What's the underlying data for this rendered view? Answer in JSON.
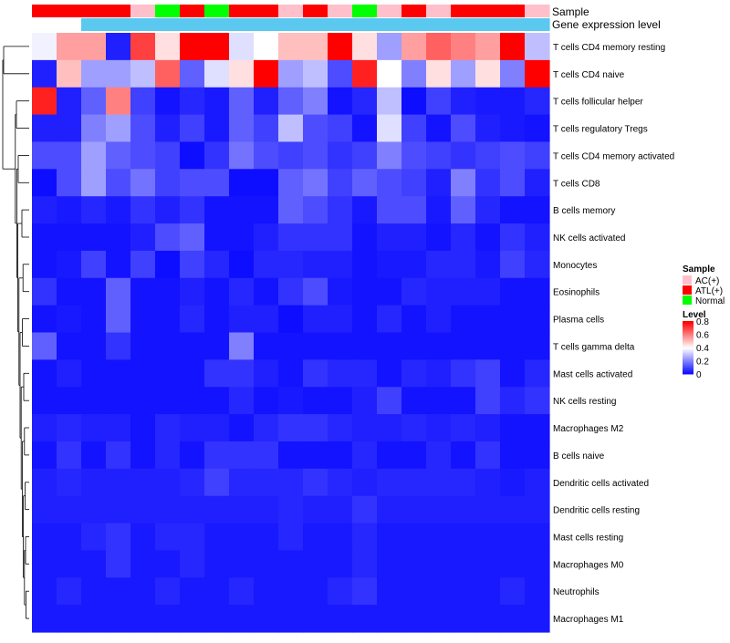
{
  "chart_data": {
    "type": "heatmap",
    "title": "",
    "rows": [
      "T cells CD4 memory resting",
      "T cells CD4 naive",
      "T cells follicular helper",
      "T cells regulatory  Tregs",
      "T cells CD4 memory activated",
      "T cells CD8",
      "B cells memory",
      "NK cells activated",
      "Monocytes",
      "Eosinophils",
      "Plasma cells",
      "T cells gamma delta",
      "Mast cells activated",
      "NK cells resting",
      "Macrophages M2",
      "B cells naive",
      "Dendritic cells activated",
      "Dendritic cells resting",
      "Mast cells resting",
      "Macrophages M0",
      "Neutrophils",
      "Macrophages M1"
    ],
    "column_annotations": [
      {
        "name": "Sample",
        "values": [
          "ATL(+)",
          "ATL(+)",
          "ATL(+)",
          "ATL(+)",
          "AC(+)",
          "Normal",
          "ATL(+)",
          "Normal",
          "ATL(+)",
          "ATL(+)",
          "AC(+)",
          "ATL(+)",
          "AC(+)",
          "Normal",
          "AC(+)",
          "ATL(+)",
          "AC(+)",
          "ATL(+)",
          "ATL(+)",
          "ATL(+)",
          "AC(+)"
        ]
      },
      {
        "name": "Gene expression level",
        "values": [
          "low",
          "low",
          "high",
          "high",
          "high",
          "high",
          "high",
          "high",
          "high",
          "high",
          "high",
          "high",
          "high",
          "high",
          "high",
          "high",
          "high",
          "high",
          "high",
          "high",
          "high"
        ]
      }
    ],
    "values": [
      [
        0.38,
        0.55,
        0.55,
        0.05,
        0.7,
        0.45,
        0.8,
        0.8,
        0.35,
        0.4,
        0.5,
        0.5,
        0.8,
        0.45,
        0.25,
        0.55,
        0.65,
        0.6,
        0.55,
        0.8,
        0.3
      ],
      [
        0.05,
        0.5,
        0.25,
        0.25,
        0.3,
        0.65,
        0.15,
        0.35,
        0.45,
        0.8,
        0.25,
        0.3,
        0.12,
        0.75,
        0.4,
        0.2,
        0.45,
        0.25,
        0.45,
        0.2,
        0.8
      ],
      [
        0.75,
        0.05,
        0.15,
        0.6,
        0.1,
        0.03,
        0.06,
        0.04,
        0.15,
        0.05,
        0.15,
        0.2,
        0.03,
        0.06,
        0.3,
        0.02,
        0.1,
        0.05,
        0.04,
        0.04,
        0.06
      ],
      [
        0.05,
        0.05,
        0.2,
        0.25,
        0.12,
        0.05,
        0.1,
        0.04,
        0.15,
        0.1,
        0.3,
        0.12,
        0.1,
        0.03,
        0.35,
        0.1,
        0.03,
        0.12,
        0.05,
        0.04,
        0.03
      ],
      [
        0.12,
        0.12,
        0.25,
        0.15,
        0.12,
        0.1,
        0.02,
        0.08,
        0.18,
        0.12,
        0.1,
        0.12,
        0.08,
        0.1,
        0.2,
        0.12,
        0.1,
        0.08,
        0.1,
        0.12,
        0.1
      ],
      [
        0.02,
        0.12,
        0.25,
        0.12,
        0.18,
        0.1,
        0.12,
        0.12,
        0.02,
        0.02,
        0.15,
        0.18,
        0.1,
        0.15,
        0.12,
        0.1,
        0.05,
        0.2,
        0.08,
        0.12,
        0.05
      ],
      [
        0.05,
        0.04,
        0.06,
        0.04,
        0.08,
        0.05,
        0.08,
        0.03,
        0.03,
        0.03,
        0.15,
        0.12,
        0.08,
        0.04,
        0.12,
        0.12,
        0.04,
        0.15,
        0.06,
        0.03,
        0.03
      ],
      [
        0.03,
        0.03,
        0.03,
        0.03,
        0.05,
        0.12,
        0.15,
        0.03,
        0.03,
        0.05,
        0.08,
        0.08,
        0.08,
        0.03,
        0.05,
        0.05,
        0.03,
        0.06,
        0.03,
        0.08,
        0.05
      ],
      [
        0.03,
        0.04,
        0.1,
        0.03,
        0.1,
        0.02,
        0.1,
        0.06,
        0.02,
        0.06,
        0.06,
        0.05,
        0.05,
        0.03,
        0.04,
        0.04,
        0.06,
        0.06,
        0.04,
        0.1,
        0.06
      ],
      [
        0.08,
        0.03,
        0.03,
        0.15,
        0.03,
        0.03,
        0.05,
        0.03,
        0.06,
        0.03,
        0.08,
        0.12,
        0.04,
        0.03,
        0.03,
        0.06,
        0.05,
        0.05,
        0.05,
        0.03,
        0.03
      ],
      [
        0.03,
        0.04,
        0.03,
        0.15,
        0.03,
        0.03,
        0.06,
        0.03,
        0.05,
        0.05,
        0.02,
        0.05,
        0.05,
        0.03,
        0.06,
        0.03,
        0.05,
        0.03,
        0.03,
        0.03,
        0.03
      ],
      [
        0.15,
        0.03,
        0.03,
        0.08,
        0.03,
        0.03,
        0.03,
        0.03,
        0.2,
        0.03,
        0.03,
        0.03,
        0.03,
        0.03,
        0.03,
        0.03,
        0.03,
        0.03,
        0.03,
        0.03,
        0.03
      ],
      [
        0.03,
        0.05,
        0.03,
        0.03,
        0.03,
        0.03,
        0.03,
        0.08,
        0.08,
        0.05,
        0.03,
        0.08,
        0.06,
        0.06,
        0.03,
        0.06,
        0.05,
        0.08,
        0.1,
        0.03,
        0.06
      ],
      [
        0.03,
        0.03,
        0.03,
        0.03,
        0.03,
        0.03,
        0.03,
        0.03,
        0.06,
        0.03,
        0.04,
        0.03,
        0.03,
        0.05,
        0.1,
        0.03,
        0.03,
        0.03,
        0.1,
        0.06,
        0.08
      ],
      [
        0.05,
        0.06,
        0.05,
        0.05,
        0.03,
        0.06,
        0.05,
        0.05,
        0.03,
        0.06,
        0.08,
        0.08,
        0.06,
        0.05,
        0.05,
        0.06,
        0.05,
        0.06,
        0.05,
        0.03,
        0.03
      ],
      [
        0.03,
        0.08,
        0.03,
        0.08,
        0.03,
        0.06,
        0.03,
        0.08,
        0.08,
        0.08,
        0.03,
        0.03,
        0.03,
        0.06,
        0.03,
        0.03,
        0.06,
        0.03,
        0.08,
        0.03,
        0.03
      ],
      [
        0.05,
        0.06,
        0.05,
        0.05,
        0.05,
        0.05,
        0.06,
        0.1,
        0.06,
        0.06,
        0.06,
        0.08,
        0.06,
        0.05,
        0.06,
        0.06,
        0.06,
        0.06,
        0.05,
        0.04,
        0.05
      ],
      [
        0.05,
        0.05,
        0.05,
        0.05,
        0.05,
        0.05,
        0.05,
        0.05,
        0.05,
        0.05,
        0.06,
        0.05,
        0.05,
        0.08,
        0.05,
        0.05,
        0.05,
        0.05,
        0.05,
        0.05,
        0.05
      ],
      [
        0.04,
        0.04,
        0.06,
        0.08,
        0.04,
        0.06,
        0.06,
        0.04,
        0.04,
        0.04,
        0.06,
        0.04,
        0.04,
        0.06,
        0.04,
        0.04,
        0.04,
        0.04,
        0.04,
        0.04,
        0.04
      ],
      [
        0.04,
        0.04,
        0.04,
        0.08,
        0.04,
        0.04,
        0.06,
        0.04,
        0.04,
        0.04,
        0.04,
        0.04,
        0.04,
        0.06,
        0.04,
        0.04,
        0.04,
        0.04,
        0.04,
        0.04,
        0.04
      ],
      [
        0.04,
        0.06,
        0.04,
        0.04,
        0.04,
        0.06,
        0.04,
        0.04,
        0.06,
        0.04,
        0.04,
        0.04,
        0.06,
        0.08,
        0.04,
        0.04,
        0.04,
        0.04,
        0.04,
        0.06,
        0.04
      ],
      [
        0.04,
        0.04,
        0.04,
        0.04,
        0.04,
        0.04,
        0.04,
        0.04,
        0.04,
        0.04,
        0.04,
        0.04,
        0.04,
        0.04,
        0.04,
        0.04,
        0.04,
        0.04,
        0.04,
        0.04,
        0.04
      ]
    ],
    "color_scale": {
      "colors": [
        "#0000ff",
        "#ffffff",
        "#ff0000"
      ],
      "domain": [
        0,
        0.4,
        0.8
      ]
    },
    "annotation_colors": {
      "Sample": {
        "AC(+)": "#ffc0cb",
        "ATL(+)": "#ff0000",
        "Normal": "#00ff00"
      },
      "Gene expression level": {
        "low": "#ffffff",
        "high": "#5bc8f0"
      }
    },
    "row_dendrogram_merges": [
      [
        0,
        1,
        0.65
      ],
      [
        2,
        3,
        0.3
      ],
      [
        4,
        5,
        0.25
      ],
      [
        6,
        7,
        0.15
      ],
      [
        8,
        9,
        0.12
      ],
      [
        10,
        11,
        0.14
      ],
      [
        12,
        13,
        0.1
      ],
      [
        14,
        15,
        0.08
      ],
      [
        16,
        17,
        0.06
      ],
      [
        18,
        19,
        0.05
      ],
      [
        20,
        21,
        0.04
      ]
    ],
    "legend": {
      "sample_title": "Sample",
      "sample_items": [
        "AC(+)",
        "ATL(+)",
        "Normal"
      ],
      "level_title": "Level",
      "level_ticks": [
        "0.8",
        "0.6",
        "0.4",
        "0.2",
        "0"
      ],
      "level_tick_values": [
        0.8,
        0.6,
        0.4,
        0.2,
        0
      ]
    }
  }
}
